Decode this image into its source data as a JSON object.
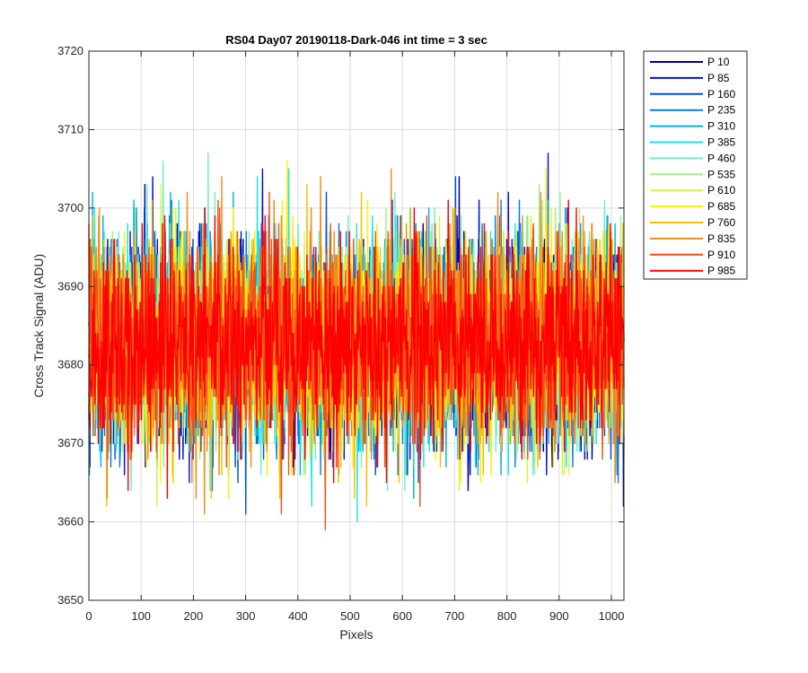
{
  "chart_data": {
    "type": "line",
    "title": "RS04 Day07 20190118-Dark-046 int time = 3 sec",
    "xlabel": "Pixels",
    "ylabel": "Cross Track Signal (ADU)",
    "xlim": [
      0,
      1024
    ],
    "ylim": [
      3650,
      3720
    ],
    "xticks": [
      0,
      100,
      200,
      300,
      400,
      500,
      600,
      700,
      800,
      900,
      1000
    ],
    "yticks": [
      3650,
      3660,
      3670,
      3680,
      3690,
      3700,
      3710,
      3720
    ],
    "grid": true,
    "legend_position": "outside-top-right",
    "noise_model": {
      "mean": 3683,
      "sigma": 6.5,
      "n_points": 1024
    },
    "series": [
      {
        "name": "P 10",
        "color": "#00008f"
      },
      {
        "name": "P 85",
        "color": "#0010d9"
      },
      {
        "name": "P 160",
        "color": "#0050e6"
      },
      {
        "name": "P 235",
        "color": "#0080e0"
      },
      {
        "name": "P 310",
        "color": "#00b2e6"
      },
      {
        "name": "P 385",
        "color": "#19e5ea"
      },
      {
        "name": "P 460",
        "color": "#70ecc8"
      },
      {
        "name": "P 535",
        "color": "#9ef08a"
      },
      {
        "name": "P 610",
        "color": "#d2f545"
      },
      {
        "name": "P 685",
        "color": "#ffee00"
      },
      {
        "name": "P 760",
        "color": "#f5bf00"
      },
      {
        "name": "P 835",
        "color": "#f28a1c"
      },
      {
        "name": "P 910",
        "color": "#f25016"
      },
      {
        "name": "P 985",
        "color": "#ff0000"
      }
    ]
  }
}
